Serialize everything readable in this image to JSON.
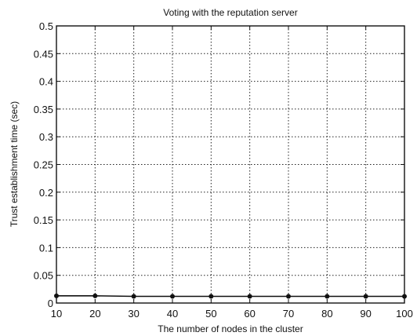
{
  "chart_data": {
    "type": "line",
    "title": "Voting with the reputation server",
    "xlabel": "The number of nodes in the cluster",
    "ylabel": "Trust establishment time (sec)",
    "x": [
      10,
      20,
      30,
      40,
      50,
      60,
      70,
      80,
      90,
      100
    ],
    "series": [
      {
        "values": [
          0.013,
          0.013,
          0.012,
          0.012,
          0.012,
          0.012,
          0.012,
          0.012,
          0.012,
          0.012
        ],
        "color": "#111111",
        "marker": "dot"
      }
    ],
    "xlim": [
      10,
      100
    ],
    "ylim": [
      0,
      0.5
    ],
    "xticks": [
      "10",
      "20",
      "30",
      "40",
      "50",
      "60",
      "70",
      "80",
      "90",
      "100"
    ],
    "yticks": [
      "0",
      "0.05",
      "0.1",
      "0.15",
      "0.2",
      "0.25",
      "0.3",
      "0.35",
      "0.4",
      "0.45",
      "0.5"
    ],
    "grid": true,
    "grid_style": "dotted"
  }
}
